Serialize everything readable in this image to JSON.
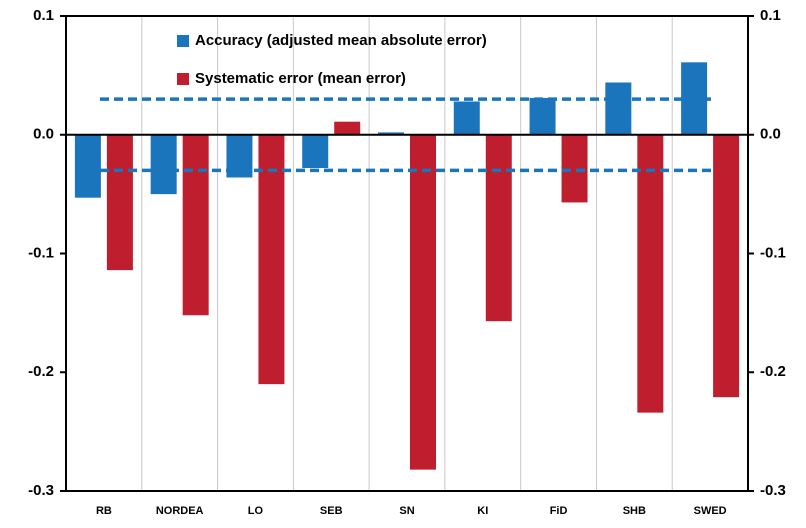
{
  "chart_data": {
    "type": "bar",
    "categories": [
      "RB",
      "NORDEA",
      "LO",
      "SEB",
      "SN",
      "KI",
      "FiD",
      "SHB",
      "SWED"
    ],
    "series": [
      {
        "name": "Accuracy (adjusted mean absolute error)",
        "color": "#1b75bc",
        "values": [
          -0.053,
          -0.05,
          -0.036,
          -0.028,
          0.002,
          0.028,
          0.031,
          0.044,
          0.061
        ]
      },
      {
        "name": "Systematic error (mean error)",
        "color": "#be1e2d",
        "values": [
          -0.114,
          -0.152,
          -0.21,
          0.011,
          -0.282,
          -0.157,
          -0.057,
          -0.234,
          -0.221
        ]
      }
    ],
    "reference_lines": [
      0.03,
      -0.03
    ],
    "reference_color": "#1b75bc",
    "ylim": [
      -0.3,
      0.1
    ],
    "yticks": [
      0.1,
      {
        "value": 0,
        "label": "0.0"
      },
      -0.1,
      -0.2,
      -0.3
    ],
    "y2lim": [
      -0.3,
      0.1
    ],
    "y2ticks": [
      0.1,
      {
        "value": 0,
        "label": "0.0"
      },
      -0.1,
      -0.2,
      -0.3
    ],
    "grid": true
  }
}
